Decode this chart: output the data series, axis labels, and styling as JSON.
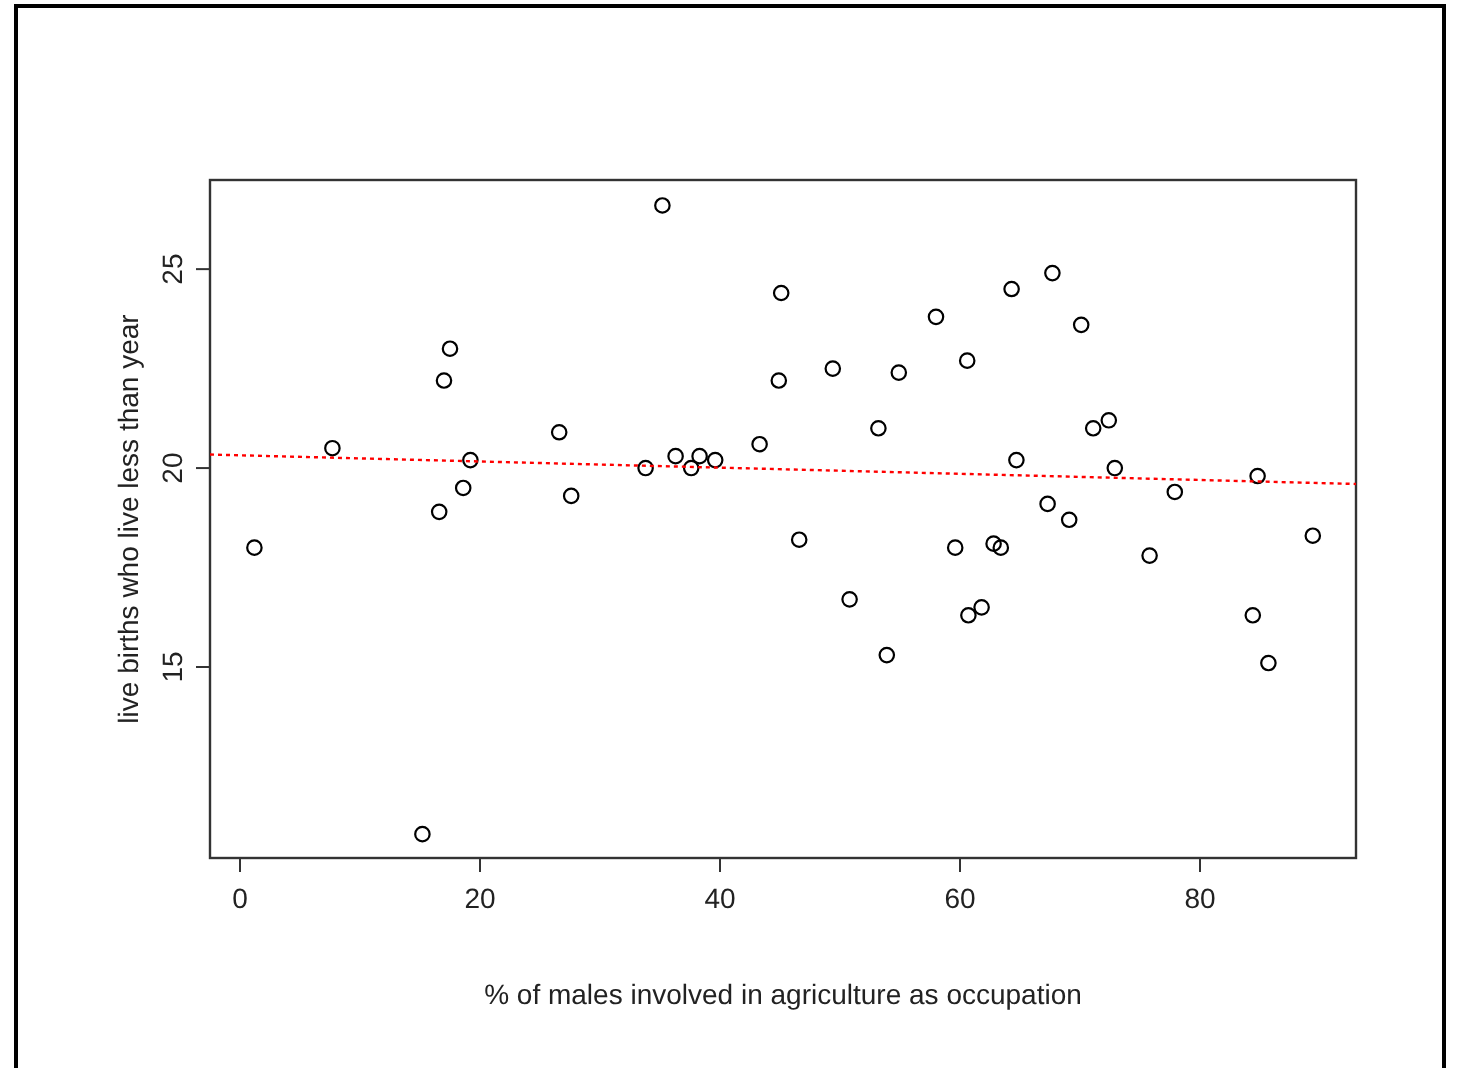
{
  "chart_data": {
    "type": "scatter",
    "xlabel": "% of males involved in agriculture as occupation",
    "ylabel": "live births who live less than year",
    "xlim": [
      -2.5,
      93
    ],
    "ylim": [
      10.2,
      27.24
    ],
    "xticks": [
      0,
      20,
      40,
      60,
      80
    ],
    "yticks": [
      15,
      20,
      25
    ],
    "grid": false,
    "marker": "circle",
    "series": [
      {
        "color": "#000000",
        "x": [
          1.2,
          7.7,
          17.5,
          17.0,
          19.2,
          18.6,
          16.6,
          15.2,
          26.6,
          27.6,
          33.8,
          35.2,
          36.3,
          37.6,
          38.3,
          39.6,
          43.3,
          45.1,
          44.9,
          46.6,
          49.4,
          50.8,
          53.2,
          53.9,
          54.9,
          58.0,
          59.6,
          60.6,
          60.7,
          61.8,
          62.8,
          63.4,
          64.3,
          64.7,
          67.7,
          67.3,
          69.1,
          70.1,
          71.1,
          72.4,
          72.9,
          75.8,
          77.9,
          84.4,
          84.8,
          85.7,
          89.4
        ],
        "values": [
          18.0,
          20.5,
          23.0,
          22.2,
          20.2,
          19.5,
          18.9,
          10.8,
          20.9,
          19.3,
          20.0,
          26.6,
          20.3,
          20.0,
          20.3,
          20.2,
          20.6,
          24.4,
          22.2,
          18.2,
          22.5,
          16.7,
          21.0,
          15.3,
          22.4,
          23.8,
          18.0,
          22.7,
          16.3,
          16.5,
          18.1,
          18.0,
          24.5,
          20.2,
          24.9,
          19.1,
          18.7,
          23.6,
          21.0,
          21.2,
          20.0,
          17.8,
          19.4,
          16.3,
          19.8,
          15.1,
          18.3
        ]
      },
      {
        "type": "line",
        "color": "#ff0000",
        "line_style": "dotted",
        "marker": "none",
        "x": [
          -2.5,
          93
        ],
        "values": [
          20.34,
          19.6
        ]
      }
    ]
  }
}
